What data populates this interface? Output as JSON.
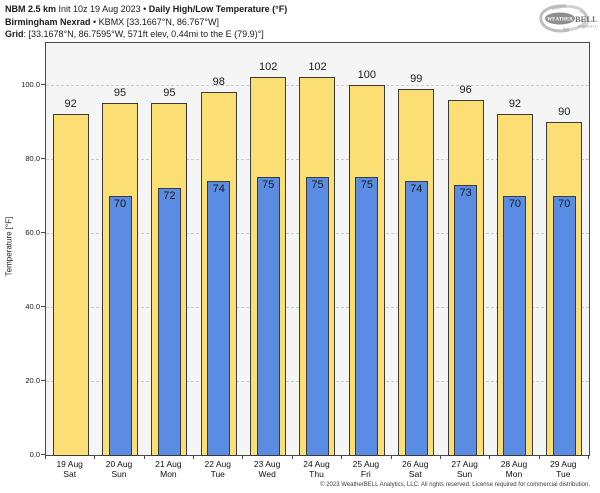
{
  "header": {
    "line1_bold": "NBM 2.5 km",
    "line1_regular": " Init 10z 19 Aug 2023 • ",
    "line1_bold2": "Daily High/Low Temperature (°F)",
    "line2_bold": "Birmingham Nexrad",
    "line2_regular": " • KBMX [33.1667°N, 86.767°W]",
    "line3_bold": "Grid",
    "line3_regular": ": [33.1678°N, 86.7595°W, 571ft elev, 0.44mi to the E (79.9)°]"
  },
  "logo": {
    "brand_weather": "WEATHER",
    "brand_bell": "BELL",
    "subtext": "Analytics LLC"
  },
  "colors": {
    "high_bar": "#FBDF74",
    "low_bar": "#5A8CE4",
    "bar_border": "#3a3a3a",
    "plot_bg": "#f5f5f5",
    "grid": "#cccccc"
  },
  "chart_data": {
    "type": "bar",
    "title": "Daily High/Low Temperature (°F)",
    "xlabel": "",
    "ylabel": "Temperature [°F]",
    "ylim": [
      0,
      111.3
    ],
    "yticks": [
      0,
      20,
      40,
      60,
      80,
      100
    ],
    "ytick_labels": [
      "0.0",
      "20.0",
      "40.0",
      "60.0",
      "80.0",
      "100.0"
    ],
    "grid": true,
    "legend_position": "none",
    "categories": [
      {
        "date": "19 Aug",
        "day": "Sat"
      },
      {
        "date": "20 Aug",
        "day": "Sun"
      },
      {
        "date": "21 Aug",
        "day": "Mon"
      },
      {
        "date": "22 Aug",
        "day": "Tue"
      },
      {
        "date": "23 Aug",
        "day": "Wed"
      },
      {
        "date": "24 Aug",
        "day": "Thu"
      },
      {
        "date": "25 Aug",
        "day": "Fri"
      },
      {
        "date": "26 Aug",
        "day": "Sat"
      },
      {
        "date": "27 Aug",
        "day": "Sun"
      },
      {
        "date": "28 Aug",
        "day": "Mon"
      },
      {
        "date": "29 Aug",
        "day": "Tue"
      }
    ],
    "series": [
      {
        "name": "Daily High",
        "values": [
          92,
          95,
          95,
          98,
          102,
          102,
          100,
          99,
          96,
          92,
          90
        ]
      },
      {
        "name": "Daily Low",
        "values": [
          null,
          70,
          72,
          74,
          75,
          75,
          75,
          74,
          73,
          70,
          70
        ]
      }
    ]
  },
  "footer": {
    "copyright": "© 2023 WeatherBELL Analytics, LLC. All rights reserved. License required for commercial distribution."
  }
}
